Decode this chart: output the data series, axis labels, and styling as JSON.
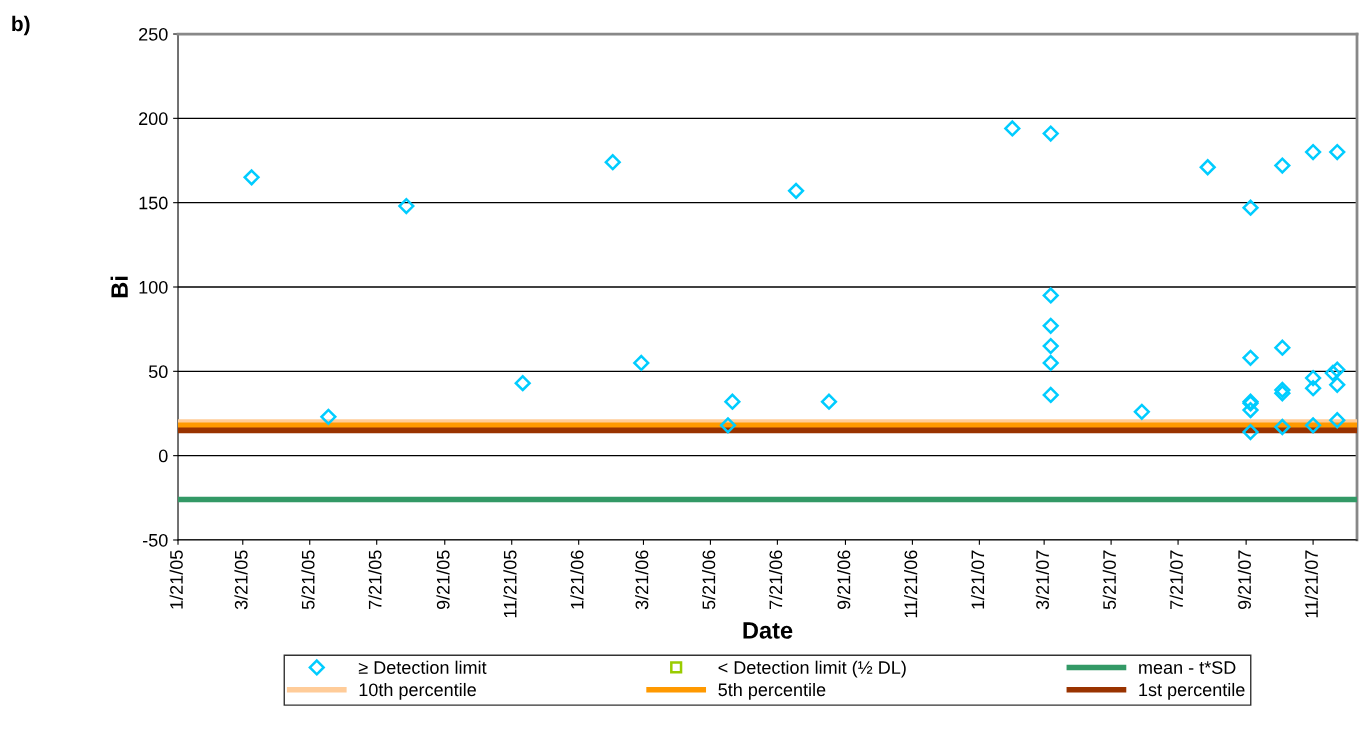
{
  "chart_data": {
    "type": "scatter",
    "xlabel": "Date",
    "ylabel": "Bi",
    "annotations": [
      "b)"
    ],
    "series": [
      {
        "name": "≥ Detection limit",
        "color": "#00ccff",
        "marker": "diamond",
        "x": [
          "2005-03-29",
          "2005-06-07",
          "2005-08-17",
          "2005-12-01",
          "2006-02-21",
          "2006-03-19",
          "2006-06-06",
          "2006-06-10",
          "2006-08-07",
          "2006-09-06",
          "2007-02-20",
          "2007-03-27",
          "2007-03-27",
          "2007-03-27",
          "2007-03-27",
          "2007-03-27",
          "2007-03-27",
          "2007-06-18",
          "2007-08-17",
          "2007-09-25",
          "2007-09-25",
          "2007-09-25",
          "2007-09-25",
          "2007-09-25",
          "2007-09-25",
          "2007-10-24",
          "2007-10-24",
          "2007-10-24",
          "2007-10-24",
          "2007-10-24",
          "2007-11-21",
          "2007-11-21",
          "2007-11-21",
          "2007-11-21",
          "2007-12-13",
          "2007-12-13",
          "2007-12-09",
          "2007-12-13",
          "2007-12-13"
        ],
        "values": [
          165,
          23,
          148,
          43,
          174,
          55,
          18,
          32,
          157,
          32,
          194,
          191,
          95,
          77,
          65,
          55,
          36,
          26,
          171,
          147,
          58,
          32,
          31,
          27,
          14,
          172,
          64,
          39,
          37,
          17,
          180,
          46,
          40,
          18,
          180,
          51,
          49,
          42,
          21
        ]
      },
      {
        "name": "< Detection limit (½ DL)",
        "color": "#99cc00",
        "marker": "square"
      }
    ],
    "ref_lines": [
      {
        "axis": "y",
        "value": -26,
        "label": "mean - t*SD",
        "color": "#339966"
      },
      {
        "axis": "y",
        "value": 20,
        "label": "10th percentile",
        "color": "#ffcc99"
      },
      {
        "axis": "y",
        "value": 18,
        "label": "5th percentile",
        "color": "#ff9900"
      },
      {
        "axis": "y",
        "value": 15,
        "label": "1st percentile",
        "color": "#993300"
      }
    ],
    "xlim": [
      "2005-01-21",
      "2007-12-31"
    ],
    "xticks": [
      {
        "value": "2005-01-21",
        "label": "1/21/05"
      },
      {
        "value": "2005-03-21",
        "label": "3/21/05"
      },
      {
        "value": "2005-05-21",
        "label": "5/21/05"
      },
      {
        "value": "2005-07-21",
        "label": "7/21/05"
      },
      {
        "value": "2005-09-21",
        "label": "9/21/05"
      },
      {
        "value": "2005-11-21",
        "label": "11/21/05"
      },
      {
        "value": "2006-01-21",
        "label": "1/21/06"
      },
      {
        "value": "2006-03-21",
        "label": "3/21/06"
      },
      {
        "value": "2006-05-21",
        "label": "5/21/06"
      },
      {
        "value": "2006-07-21",
        "label": "7/21/06"
      },
      {
        "value": "2006-09-21",
        "label": "9/21/06"
      },
      {
        "value": "2006-11-21",
        "label": "11/21/06"
      },
      {
        "value": "2007-01-21",
        "label": "1/21/07"
      },
      {
        "value": "2007-03-21",
        "label": "3/21/07"
      },
      {
        "value": "2007-05-21",
        "label": "5/21/07"
      },
      {
        "value": "2007-07-21",
        "label": "7/21/07"
      },
      {
        "value": "2007-09-21",
        "label": "9/21/07"
      },
      {
        "value": "2007-11-21",
        "label": "11/21/07"
      }
    ],
    "ylim": [
      -50,
      250
    ],
    "yticks": [
      -50,
      0,
      50,
      100,
      150,
      200,
      250
    ],
    "grid": "y",
    "legend": "bottom"
  }
}
